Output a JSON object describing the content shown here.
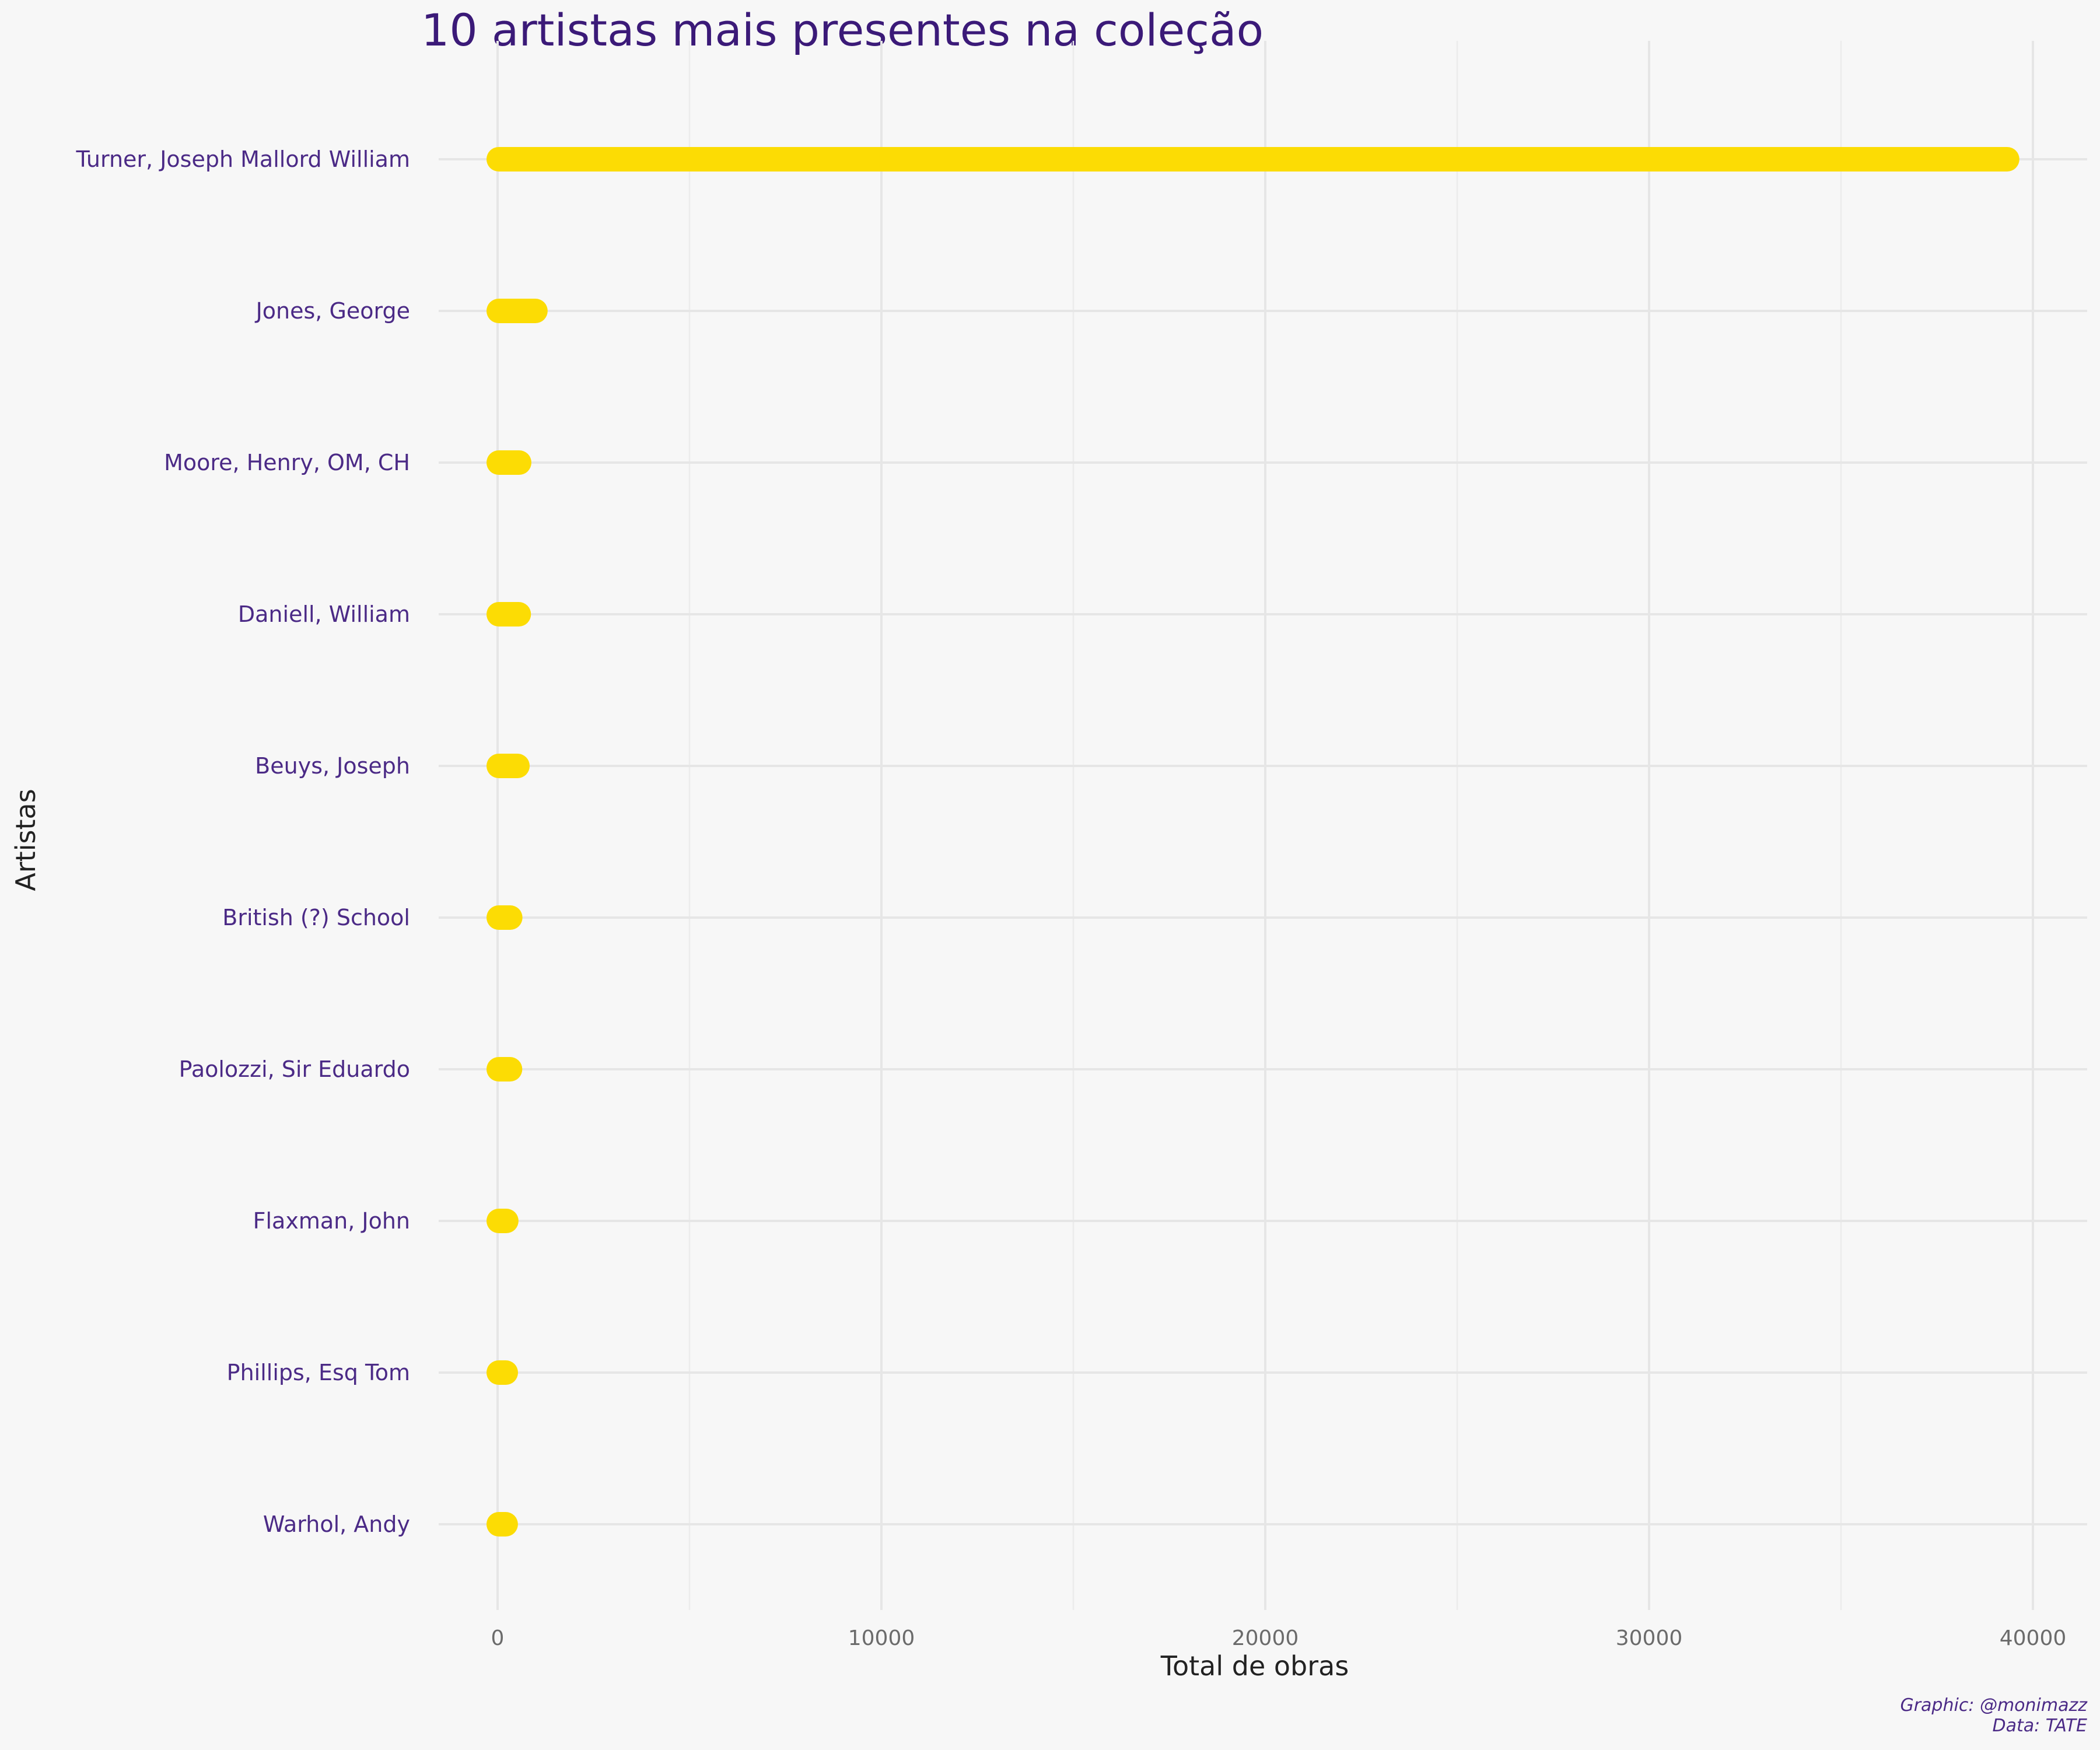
{
  "chart_data": {
    "type": "bar",
    "orientation": "horizontal",
    "title": "10 artistas mais presentes na coleção",
    "xlabel": "Total de obras",
    "ylabel": "Artistas",
    "caption": [
      "Graphic: @monimazz",
      "Data: TATE"
    ],
    "categories": [
      "Turner, Joseph Mallord William",
      "Jones, George",
      "Moore, Henry, OM, CH",
      "Daniell, William",
      "Beuys, Joseph",
      "British (?) School",
      "Paolozzi, Sir Eduardo",
      "Flaxman, John",
      "Phillips, Esq Tom",
      "Warhol, Andy"
    ],
    "values": [
      39389,
      1046,
      623,
      612,
      578,
      390,
      385,
      287,
      274,
      272
    ],
    "xlim": [
      0,
      40000
    ],
    "xticks": [
      0,
      10000,
      20000,
      30000,
      40000
    ],
    "xtick_labels": [
      "0",
      "10000",
      "20000",
      "30000",
      "40000"
    ],
    "grid": true,
    "legend": "none",
    "colors": {
      "bar": "#fcdc04",
      "title": "#3b1a78",
      "category_label": "#4b2a86",
      "background": "#f7f7f7",
      "grid": "#e6e6e6"
    }
  }
}
